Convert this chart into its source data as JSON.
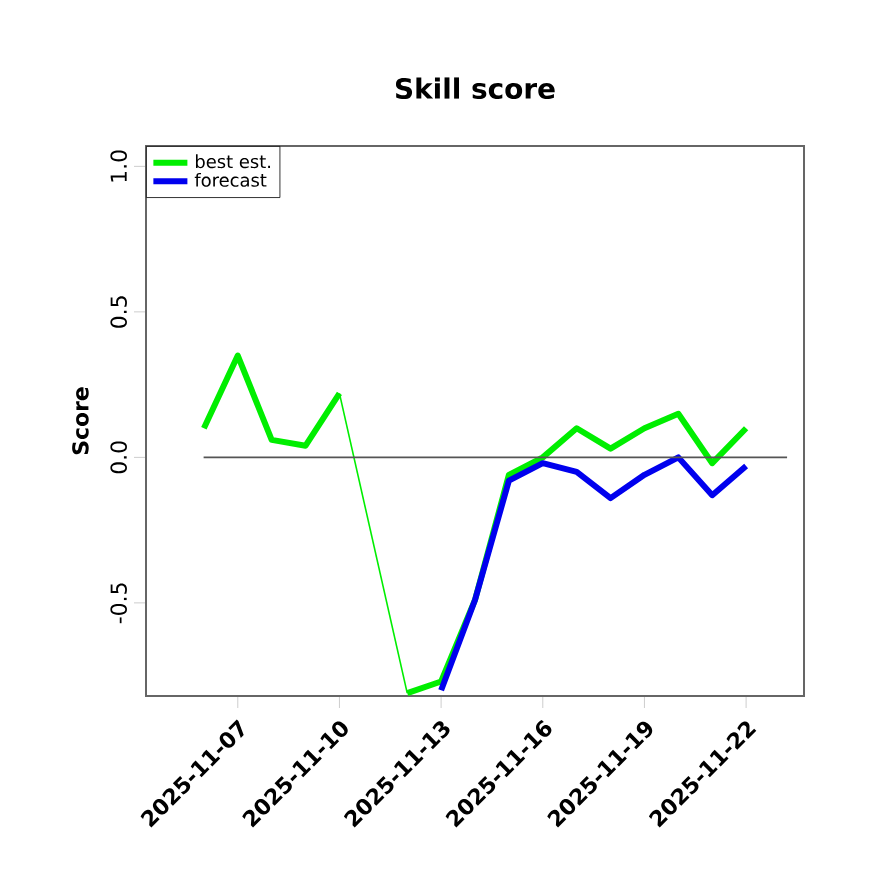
{
  "chart_data": {
    "type": "line",
    "title": "Skill score",
    "ylabel": "Score",
    "series": [
      {
        "name": "best est.",
        "color": "#00ee00",
        "x": [
          "2025-11-06",
          "2025-11-07",
          "2025-11-08",
          "2025-11-09",
          "2025-11-10",
          "2025-11-11",
          "2025-11-12",
          "2025-11-13",
          "2025-11-14",
          "2025-11-15",
          "2025-11-16",
          "2025-11-17",
          "2025-11-18",
          "2025-11-19",
          "2025-11-20",
          "2025-11-21",
          "2025-11-22"
        ],
        "values": [
          0.1,
          0.35,
          0.06,
          0.04,
          0.22,
          null,
          -0.81,
          -0.77,
          -0.49,
          -0.06,
          0.0,
          0.1,
          0.03,
          0.1,
          0.15,
          -0.02,
          0.1
        ]
      },
      {
        "name": "forecast",
        "color": "#0000ee",
        "x": [
          "2025-11-13",
          "2025-11-14",
          "2025-11-15",
          "2025-11-16",
          "2025-11-17",
          "2025-11-18",
          "2025-11-19",
          "2025-11-20",
          "2025-11-21",
          "2025-11-22"
        ],
        "values": [
          -0.8,
          -0.49,
          -0.08,
          -0.02,
          -0.05,
          -0.14,
          -0.06,
          0.0,
          -0.13,
          -0.03
        ]
      }
    ],
    "xlim": [
      "2025-11-04T07:00",
      "2025-11-23T17:00"
    ],
    "xticks": [
      {
        "value": "2025-11-07",
        "label": "2025-11-07"
      },
      {
        "value": "2025-11-10",
        "label": "2025-11-10"
      },
      {
        "value": "2025-11-13",
        "label": "2025-11-13"
      },
      {
        "value": "2025-11-16",
        "label": "2025-11-16"
      },
      {
        "value": "2025-11-19",
        "label": "2025-11-19"
      },
      {
        "value": "2025-11-22",
        "label": "2025-11-22"
      }
    ],
    "ylim": [
      -0.82,
      1.07
    ],
    "yticks": [
      -0.5,
      {
        "value": 0,
        "label": "0.0"
      },
      0.5,
      {
        "value": 1,
        "label": "1.0"
      }
    ],
    "ref_lines": [
      {
        "axis": "y",
        "value": 0,
        "color": "#555555"
      }
    ],
    "legend": "top left",
    "grid": false,
    "marker": "none",
    "line_style": "solid"
  }
}
